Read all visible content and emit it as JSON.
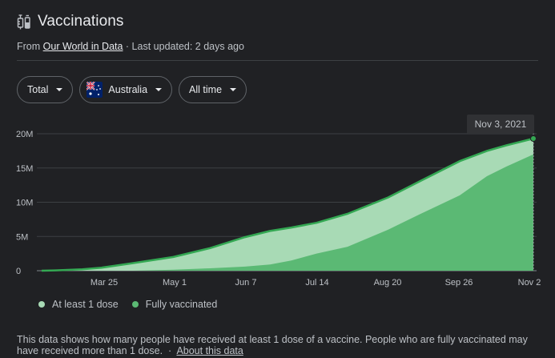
{
  "header": {
    "title": "Vaccinations",
    "source_prefix": "From ",
    "source_link": "Our World in Data",
    "updated": " · Last updated: 2 days ago",
    "icon": "syringe-icon"
  },
  "controls": {
    "metric": "Total",
    "country": "Australia",
    "range": "All time",
    "flag_icon": "australia-flag-icon"
  },
  "colors": {
    "at_least_one": "#a8dab5",
    "fully": "#5bb974",
    "line": "#34a853"
  },
  "chart_data": {
    "type": "area",
    "x_ticks": [
      "Mar 25",
      "May 1",
      "Jun 7",
      "Jul 14",
      "Aug 20",
      "Sep 26",
      "Nov 2"
    ],
    "y_ticks": [
      "0",
      "5M",
      "10M",
      "15M",
      "20M"
    ],
    "ylim": [
      0,
      20000000
    ],
    "xlim": [
      "2021-02-22",
      "2021-11-03"
    ],
    "tooltip": "Nov 3, 2021",
    "x": [
      "2021-02-22",
      "2021-03-01",
      "2021-03-15",
      "2021-03-25",
      "2021-04-10",
      "2021-05-01",
      "2021-05-20",
      "2021-06-07",
      "2021-06-20",
      "2021-07-01",
      "2021-07-14",
      "2021-07-30",
      "2021-08-20",
      "2021-09-05",
      "2021-09-26",
      "2021-10-10",
      "2021-10-20",
      "2021-11-03"
    ],
    "series": [
      {
        "name": "At least 1 dose",
        "values": [
          0,
          50000,
          200000,
          450000,
          1100000,
          2000000,
          3300000,
          4900000,
          5800000,
          6300000,
          7000000,
          8300000,
          10700000,
          13000000,
          16000000,
          17500000,
          18300000,
          19300000
        ]
      },
      {
        "name": "Fully vaccinated",
        "values": [
          0,
          0,
          0,
          0,
          0,
          150000,
          350000,
          600000,
          900000,
          1500000,
          2500000,
          3500000,
          6000000,
          8200000,
          11000000,
          13800000,
          15200000,
          17000000
        ]
      }
    ]
  },
  "footnote": {
    "text": "This data shows how many people have received at least 1 dose of a vaccine. People who are fully vaccinated may have received more than 1 dose.",
    "sep": "  ·  ",
    "link": "About this data"
  }
}
